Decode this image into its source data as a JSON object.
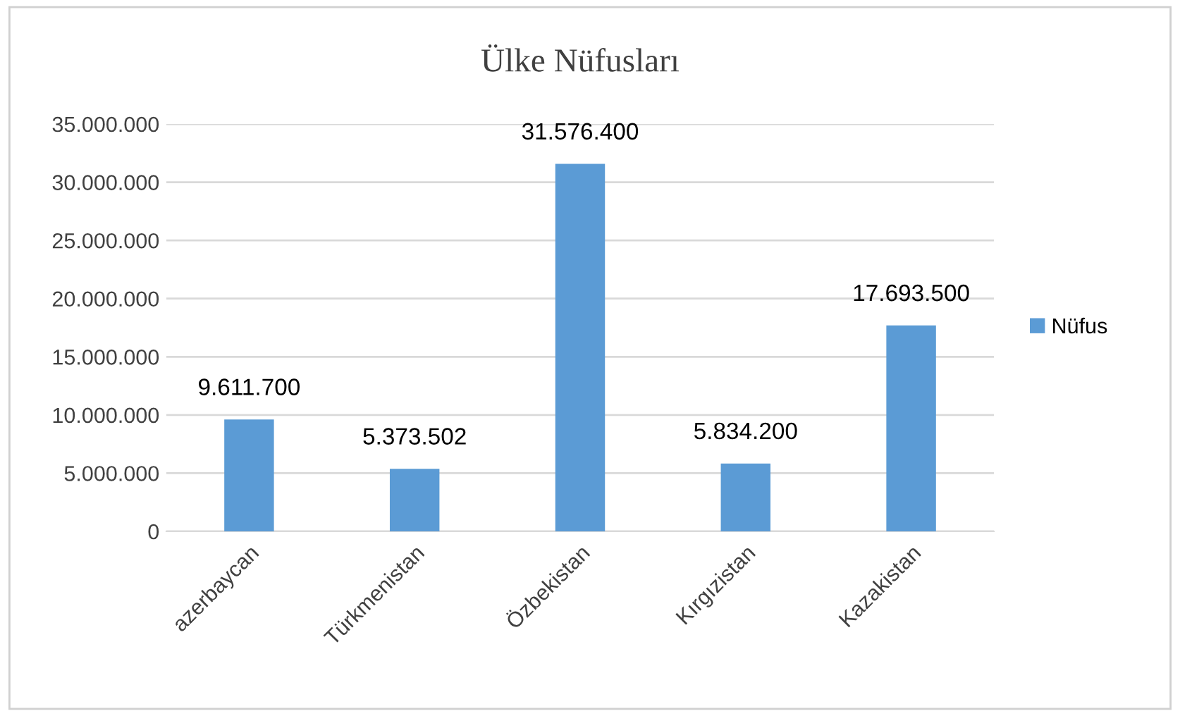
{
  "chart_data": {
    "type": "bar",
    "title": "Ülke Nüfusları",
    "categories": [
      "azerbaycan",
      "Türkmenistan",
      "Özbekistan",
      "Kırgızistan",
      "Kazakistan"
    ],
    "series": [
      {
        "name": "Nüfus",
        "color": "#5b9bd5",
        "values": [
          9611700,
          5373502,
          31576400,
          5834200,
          17693500
        ],
        "value_labels": [
          "9.611.700",
          "5.373.502",
          "31.576.400",
          "5.834.200",
          "17.693.500"
        ]
      }
    ],
    "ylim": [
      0,
      35000000
    ],
    "yticks": [
      {
        "value": 0,
        "label": "0"
      },
      {
        "value": 5000000,
        "label": "5.000.000"
      },
      {
        "value": 10000000,
        "label": "10.000.000"
      },
      {
        "value": 15000000,
        "label": "15.000.000"
      },
      {
        "value": 20000000,
        "label": "20.000.000"
      },
      {
        "value": 25000000,
        "label": "25.000.000"
      },
      {
        "value": 30000000,
        "label": "30.000.000"
      },
      {
        "value": 35000000,
        "label": "35.000.000"
      }
    ],
    "grid": "y",
    "legend": "right"
  }
}
